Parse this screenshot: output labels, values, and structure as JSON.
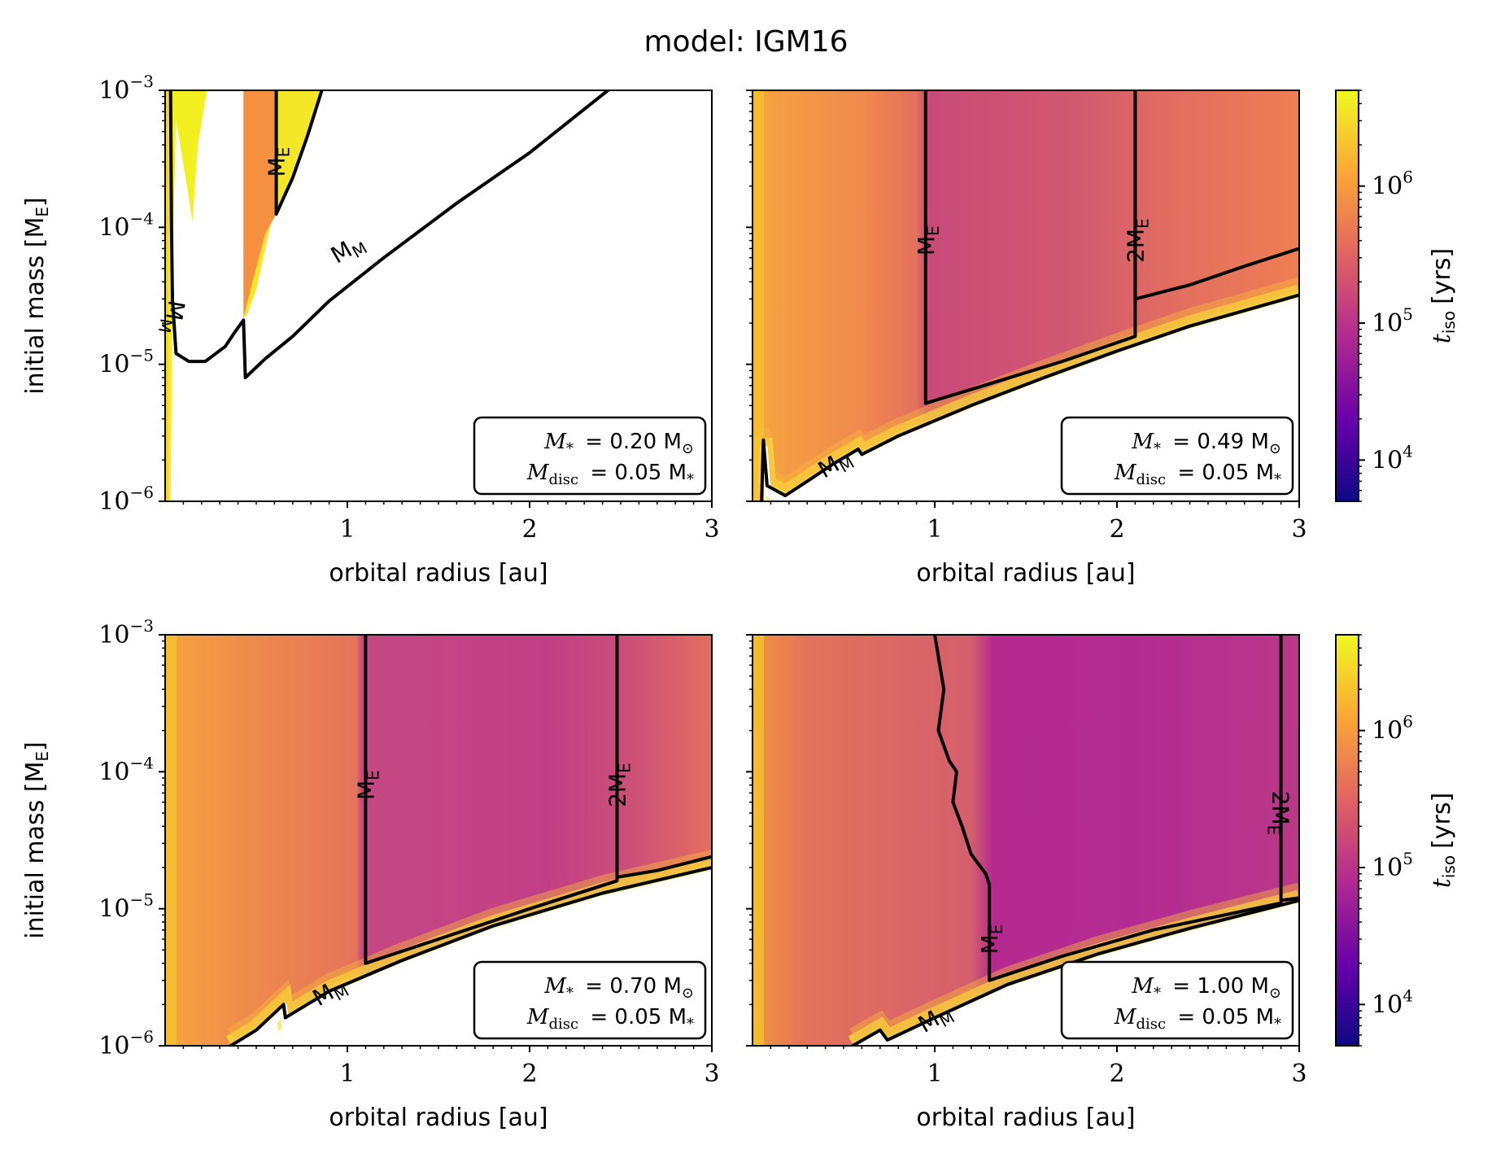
{
  "title": "model: IGM16",
  "colorbar": {
    "label_main": "t",
    "label_sub": "iso",
    "label_unit": "[yrs]",
    "tick_labels": [
      "10",
      "10",
      "10"
    ],
    "tick_exponents": [
      "4",
      "5",
      "6"
    ],
    "tick_values": [
      10000,
      100000,
      1000000
    ],
    "range": [
      5000,
      5000000
    ],
    "colormap": "plasma",
    "colors": [
      "#0d0887",
      "#6a00a8",
      "#b12a90",
      "#e16462",
      "#fca636",
      "#f0f921"
    ]
  },
  "chart_data": [
    {
      "type": "heatmap",
      "panel": "top-left",
      "xlabel": "orbital radius [au]",
      "ylabel_main": "initial mass [M",
      "ylabel_sub": "E",
      "ylabel_end": "]",
      "x_ticks": [
        "1",
        "2",
        "3"
      ],
      "x_tick_values": [
        1,
        2,
        3
      ],
      "y_ticks": [
        "10",
        "10",
        "10",
        "10"
      ],
      "y_tick_exponents": [
        "−6",
        "−5",
        "−4",
        "−3"
      ],
      "y_tick_values": [
        1e-06,
        1e-05,
        0.0001,
        0.001
      ],
      "xlim": [
        0,
        3
      ],
      "ylim": [
        1e-06,
        0.001
      ],
      "mstar_label": "M",
      "mstar_sub": "*",
      "mstar_value": "= 0.20 M",
      "mdisc_label": "M",
      "mdisc_sub": "disc",
      "mdisc_value": "= 0.05 M",
      "mdisc_tail_sub": "*",
      "mstar": 0.2,
      "contours": [
        {
          "label": "M",
          "label_sub": "M",
          "label_x": 0.05,
          "label_y": 2.2e-05,
          "label_rot": 100,
          "points": [
            [
              0.03,
              0.001
            ],
            [
              0.035,
              0.0001
            ],
            [
              0.04,
              3e-05
            ],
            [
              0.06,
              1.2e-05
            ],
            [
              0.13,
              1.05e-05
            ],
            [
              0.22,
              1.05e-05
            ],
            [
              0.33,
              1.35e-05
            ],
            [
              0.38,
              1.7e-05
            ],
            [
              0.43,
              2.1e-05
            ],
            [
              0.44,
              8e-06
            ],
            [
              0.55,
              1.1e-05
            ],
            [
              0.7,
              1.6e-05
            ],
            [
              0.9,
              2.9e-05
            ],
            [
              1.2,
              6e-05
            ],
            [
              1.6,
              0.00015
            ],
            [
              2.0,
              0.00035
            ],
            [
              2.43,
              0.001
            ]
          ]
        },
        {
          "label": "M",
          "label_sub": "E",
          "label_x": 0.61,
          "label_y": 0.0003,
          "label_rot": -90,
          "points": [
            [
              0.61,
              0.001
            ],
            [
              0.61,
              0.000125
            ],
            [
              0.7,
              0.00023
            ],
            [
              0.78,
              0.00046
            ],
            [
              0.86,
              0.001
            ]
          ]
        }
      ],
      "labels_text": [
        {
          "text": "M",
          "sub": "M",
          "x": 1.0,
          "y": 7e-05,
          "rot": -30
        }
      ],
      "regions": "white region below M_M contour and in gap between 0.06 and 0.42 au; yellow to orange strip near 0.05–0.15 au and 0.42–0.86 au"
    },
    {
      "type": "heatmap",
      "panel": "top-right",
      "xlabel": "orbital radius [au]",
      "x_ticks": [
        "1",
        "2",
        "3"
      ],
      "x_tick_values": [
        1,
        2,
        3
      ],
      "xlim": [
        0,
        3
      ],
      "ylim": [
        1e-06,
        0.001
      ],
      "mstar_label": "M",
      "mstar_sub": "*",
      "mstar_value": "= 0.49 M",
      "mdisc_label": "M",
      "mdisc_sub": "disc",
      "mdisc_value": "= 0.05 M",
      "mdisc_tail_sub": "*",
      "mstar": 0.49,
      "contours": [
        {
          "label": "M",
          "label_sub": "E",
          "label_x": 0.95,
          "label_y": 8e-05,
          "label_rot": -90,
          "points": [
            [
              0.95,
              0.001
            ],
            [
              0.95,
              5.2e-06
            ],
            [
              1.3,
              7.2e-06
            ],
            [
              1.7,
              1.05e-05
            ],
            [
              2.1,
              1.6e-05
            ],
            [
              2.1,
              0.001
            ]
          ]
        },
        {
          "label": "2M",
          "label_sub": "E",
          "label_x": 2.1,
          "label_y": 8e-05,
          "label_rot": -90,
          "points": [
            [
              2.1,
              0.001
            ],
            [
              2.1,
              3e-05
            ],
            [
              2.4,
              3.8e-05
            ],
            [
              2.7,
              5.2e-05
            ],
            [
              3.0,
              7e-05
            ]
          ]
        },
        {
          "label": "M",
          "label_sub": "M",
          "label_x": 0.45,
          "label_y": 1.9e-06,
          "label_rot": -30,
          "points": [
            [
              0.05,
              1e-06
            ],
            [
              0.06,
              2.8e-06
            ],
            [
              0.08,
              1.3e-06
            ],
            [
              0.18,
              1.1e-06
            ],
            [
              0.3,
              1.4e-06
            ],
            [
              0.45,
              1.9e-06
            ],
            [
              0.58,
              2.4e-06
            ],
            [
              0.6,
              2.2e-06
            ],
            [
              0.8,
              3e-06
            ],
            [
              1.2,
              5e-06
            ],
            [
              1.6,
              8e-06
            ],
            [
              2.0,
              1.25e-05
            ],
            [
              2.4,
              1.9e-05
            ],
            [
              3.0,
              3.2e-05
            ]
          ]
        }
      ],
      "regions": "color field above M_M; yellow near inner edge; white below"
    },
    {
      "type": "heatmap",
      "panel": "bottom-left",
      "xlabel": "orbital radius [au]",
      "ylabel_main": "initial mass [M",
      "ylabel_sub": "E",
      "ylabel_end": "]",
      "x_ticks": [
        "1",
        "2",
        "3"
      ],
      "x_tick_values": [
        1,
        2,
        3
      ],
      "y_ticks": [
        "10",
        "10",
        "10",
        "10"
      ],
      "y_tick_exponents": [
        "−6",
        "−5",
        "−4",
        "−3"
      ],
      "y_tick_values": [
        1e-06,
        1e-05,
        0.0001,
        0.001
      ],
      "xlim": [
        0,
        3
      ],
      "ylim": [
        1e-06,
        0.001
      ],
      "mstar_label": "M",
      "mstar_sub": "*",
      "mstar_value": "= 0.70 M",
      "mdisc_label": "M",
      "mdisc_sub": "disc",
      "mdisc_value": "= 0.05 M",
      "mdisc_tail_sub": "*",
      "mstar": 0.7,
      "contours": [
        {
          "label": "M",
          "label_sub": "E",
          "label_x": 1.1,
          "label_y": 8e-05,
          "label_rot": -90,
          "points": [
            [
              1.1,
              0.001
            ],
            [
              1.1,
              4e-06
            ],
            [
              1.5,
              6e-06
            ],
            [
              2.0,
              1e-05
            ],
            [
              2.48,
              1.6e-05
            ],
            [
              2.48,
              0.001
            ]
          ]
        },
        {
          "label": "2M",
          "label_sub": "E",
          "label_x": 2.48,
          "label_y": 8e-05,
          "label_rot": -90,
          "points": [
            [
              2.48,
              0.001
            ],
            [
              2.48,
              1.7e-05
            ],
            [
              2.7,
              1.9e-05
            ],
            [
              3.0,
              2.4e-05
            ]
          ]
        },
        {
          "label": "M",
          "label_sub": "M",
          "label_x": 0.9,
          "label_y": 2.5e-06,
          "label_rot": -30,
          "points": [
            [
              0.36,
              1e-06
            ],
            [
              0.5,
              1.3e-06
            ],
            [
              0.65,
              2e-06
            ],
            [
              0.66,
              1.6e-06
            ],
            [
              0.9,
              2.5e-06
            ],
            [
              1.3,
              4.2e-06
            ],
            [
              1.8,
              7.5e-06
            ],
            [
              2.4,
              1.3e-05
            ],
            [
              3.0,
              2e-05
            ]
          ]
        }
      ],
      "regions": "color field above M_M; yellow near inner edge; white below"
    },
    {
      "type": "heatmap",
      "panel": "bottom-right",
      "xlabel": "orbital radius [au]",
      "x_ticks": [
        "1",
        "2",
        "3"
      ],
      "x_tick_values": [
        1,
        2,
        3
      ],
      "xlim": [
        0,
        3
      ],
      "ylim": [
        1e-06,
        0.001
      ],
      "mstar_label": "M",
      "mstar_sub": "*",
      "mstar_value": "= 1.00 M",
      "mdisc_label": "M",
      "mdisc_sub": "disc",
      "mdisc_value": "= 0.05 M",
      "mdisc_tail_sub": "*",
      "mstar": 1.0,
      "contours": [
        {
          "label": "M",
          "label_sub": "E",
          "label_x": 1.3,
          "label_y": 6e-06,
          "label_rot": -90,
          "points": [
            [
              1.0,
              0.001
            ],
            [
              1.05,
              0.0004
            ],
            [
              1.02,
              0.0002
            ],
            [
              1.08,
              0.00012
            ],
            [
              1.12,
              0.0001
            ],
            [
              1.1,
              6e-05
            ],
            [
              1.15,
              4e-05
            ],
            [
              1.2,
              2.5e-05
            ],
            [
              1.28,
              1.8e-05
            ],
            [
              1.3,
              1.5e-05
            ],
            [
              1.3,
              3e-06
            ],
            [
              1.7,
              4.5e-06
            ],
            [
              2.2,
              7e-06
            ],
            [
              2.9,
              1.1e-05
            ]
          ]
        },
        {
          "label": "2M",
          "label_sub": "E",
          "label_x": 2.9,
          "label_y": 5e-05,
          "label_rot": 90,
          "points": [
            [
              2.9,
              0.001
            ],
            [
              2.9,
              1.15e-05
            ],
            [
              3.0,
              1.2e-05
            ]
          ]
        },
        {
          "label": "M",
          "label_sub": "M",
          "label_x": 1.0,
          "label_y": 1.6e-06,
          "label_rot": -30,
          "points": [
            [
              0.55,
              1e-06
            ],
            [
              0.7,
              1.3e-06
            ],
            [
              0.74,
              1.1e-06
            ],
            [
              1.0,
              1.6e-06
            ],
            [
              1.4,
              2.8e-06
            ],
            [
              1.9,
              4.7e-06
            ],
            [
              2.4,
              7.2e-06
            ],
            [
              3.0,
              1.15e-05
            ]
          ]
        }
      ],
      "regions": "color field above M_M; yellow near inner edge; white below"
    }
  ]
}
